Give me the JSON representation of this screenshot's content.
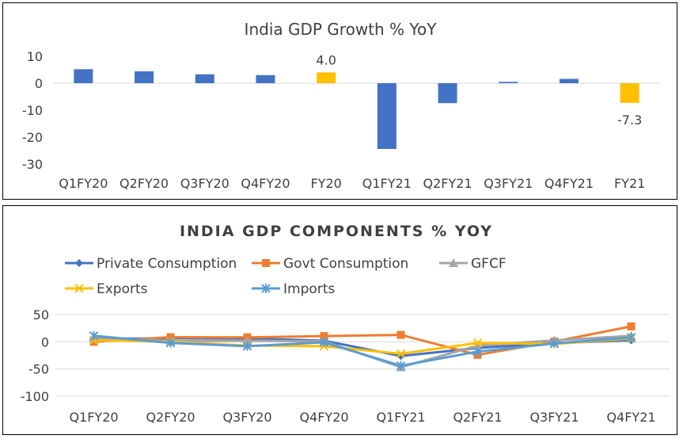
{
  "chart_data": [
    {
      "type": "bar",
      "title": "India GDP Growth % YoY",
      "categories": [
        "Q1FY20",
        "Q2FY20",
        "Q3FY20",
        "Q4FY20",
        "FY20",
        "Q1FY21",
        "Q2FY21",
        "Q3FY21",
        "Q4FY21",
        "FY21"
      ],
      "values": [
        5.2,
        4.4,
        3.3,
        3.0,
        4.0,
        -24.4,
        -7.4,
        0.5,
        1.6,
        -7.3
      ],
      "highlighted": [
        "FY20",
        "FY21"
      ],
      "data_labels": {
        "FY20": "4.0",
        "FY21": "-7.3"
      },
      "yticks": [
        "10",
        "0",
        "-10",
        "-20",
        "-30"
      ],
      "ylim": [
        -30,
        10
      ],
      "colors": {
        "quarter": "#4472C4",
        "annual": "#FFC000"
      },
      "xlabel": "",
      "ylabel": "",
      "grid": false
    },
    {
      "type": "line",
      "title": "INDIA GDP COMPONENTS % YOY",
      "categories": [
        "Q1FY20",
        "Q2FY20",
        "Q3FY20",
        "Q4FY20",
        "Q1FY21",
        "Q2FY21",
        "Q3FY21",
        "Q4FY21"
      ],
      "series": [
        {
          "name": "Private Consumption",
          "color": "#4472C4",
          "marker": "diamond",
          "values": [
            5.5,
            6.4,
            6.2,
            2.0,
            -26.2,
            -11.3,
            -2.4,
            2.7
          ]
        },
        {
          "name": "Govt Consumption",
          "color": "#ED7D31",
          "marker": "square",
          "values": [
            0.0,
            8.5,
            8.2,
            10.5,
            12.7,
            -24.0,
            0.6,
            28.3
          ]
        },
        {
          "name": "GFCF",
          "color": "#A5A5A5",
          "marker": "triangle",
          "values": [
            8.0,
            1.0,
            2.0,
            1.0,
            -46.6,
            -7.1,
            2.6,
            10.9
          ]
        },
        {
          "name": "Exports",
          "color": "#FFC000",
          "marker": "x",
          "values": [
            3.0,
            0.0,
            -7.0,
            -8.0,
            -22.0,
            -2.0,
            -4.0,
            6.0
          ]
        },
        {
          "name": "Imports",
          "color": "#5B9BD5",
          "marker": "asterisk",
          "values": [
            11.0,
            -2.0,
            -8.0,
            -1.0,
            -44.0,
            -18.0,
            -3.0,
            8.0
          ]
        }
      ],
      "yticks": [
        "50",
        "0",
        "-50",
        "-100"
      ],
      "ylim": [
        -100,
        50
      ],
      "legend": "top",
      "xlabel": "",
      "ylabel": "",
      "grid": true
    }
  ]
}
